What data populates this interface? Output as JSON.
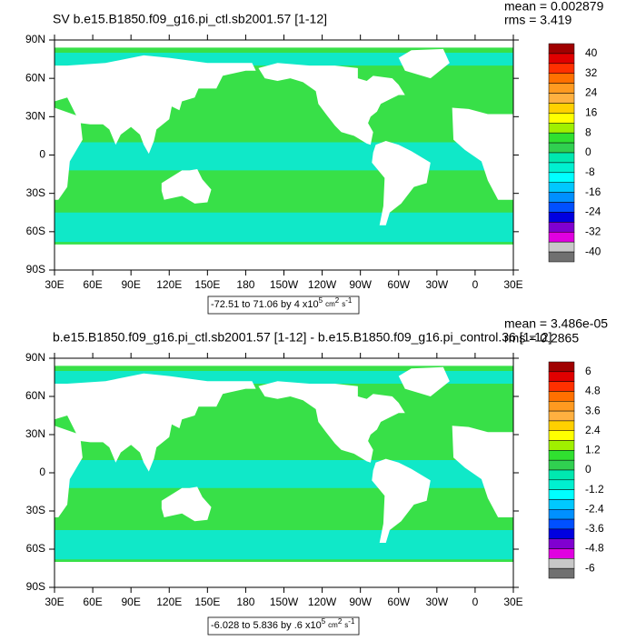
{
  "panels": [
    {
      "title": "SV b.e15.B1850.f09_g16.pi_ctl.sb2001.57 [1-12]",
      "mean": "mean = 0.002879",
      "rms": "rms = 3.419",
      "lat_labels": [
        "90N",
        "60N",
        "30N",
        "0",
        "30S",
        "60S",
        "90S"
      ],
      "lon_labels": [
        "30E",
        "60E",
        "90E",
        "120E",
        "150E",
        "180",
        "150W",
        "120W",
        "90W",
        "60W",
        "30W",
        "0",
        "30E"
      ],
      "colorbar": {
        "labels": [
          40,
          32,
          24,
          16,
          8,
          0,
          -8,
          -16,
          -24,
          -32,
          -40
        ],
        "colors": [
          "#a00000",
          "#e00000",
          "#ff3000",
          "#ff7000",
          "#ff9a20",
          "#ffb040",
          "#ffd000",
          "#ffff00",
          "#a0f000",
          "#30e030",
          "#30d050",
          "#00e8b0",
          "#00f0d0",
          "#00ffff",
          "#00c8ff",
          "#0090ff",
          "#0050ff",
          "#0000e0",
          "#8000d0",
          "#e000e0",
          "#c8c8c8",
          "#707070"
        ]
      },
      "info": {
        "text": "-72.51 to 71.06 by 4 x10",
        "exp1": "5",
        "unit1": "cm",
        "exp2": "2",
        "unit2": "s",
        "exp3": "-1"
      }
    },
    {
      "title": "b.e15.B1850.f09_g16.pi_ctl.sb2001.57 [1-12] - b.e15.B1850.f09_g16.pi_control.36 [1-12]",
      "mean": "mean = 3.486e-05",
      "rms": "rms = 0.2865",
      "lat_labels": [
        "90N",
        "60N",
        "30N",
        "0",
        "30S",
        "60S",
        "90S"
      ],
      "lon_labels": [
        "30E",
        "60E",
        "90E",
        "120E",
        "150E",
        "180",
        "150W",
        "120W",
        "90W",
        "60W",
        "30W",
        "0",
        "30E"
      ],
      "colorbar": {
        "labels": [
          6,
          4.8,
          3.6,
          2.4,
          1.2,
          0,
          -1.2,
          -2.4,
          -3.6,
          -4.8,
          -6
        ],
        "colors": [
          "#a00000",
          "#e00000",
          "#ff3000",
          "#ff7000",
          "#ff9a20",
          "#ffb040",
          "#ffd000",
          "#ffff00",
          "#a0f000",
          "#30e030",
          "#30d050",
          "#00e8b0",
          "#00f0d0",
          "#00ffff",
          "#00c8ff",
          "#0090ff",
          "#0050ff",
          "#0000e0",
          "#8000d0",
          "#e000e0",
          "#c8c8c8",
          "#707070"
        ]
      },
      "info": {
        "text": "-6.028 to 5.836 by .6 x10",
        "exp1": "5",
        "unit1": "cm",
        "exp2": "2",
        "unit2": "s",
        "exp3": "-1"
      }
    }
  ]
}
